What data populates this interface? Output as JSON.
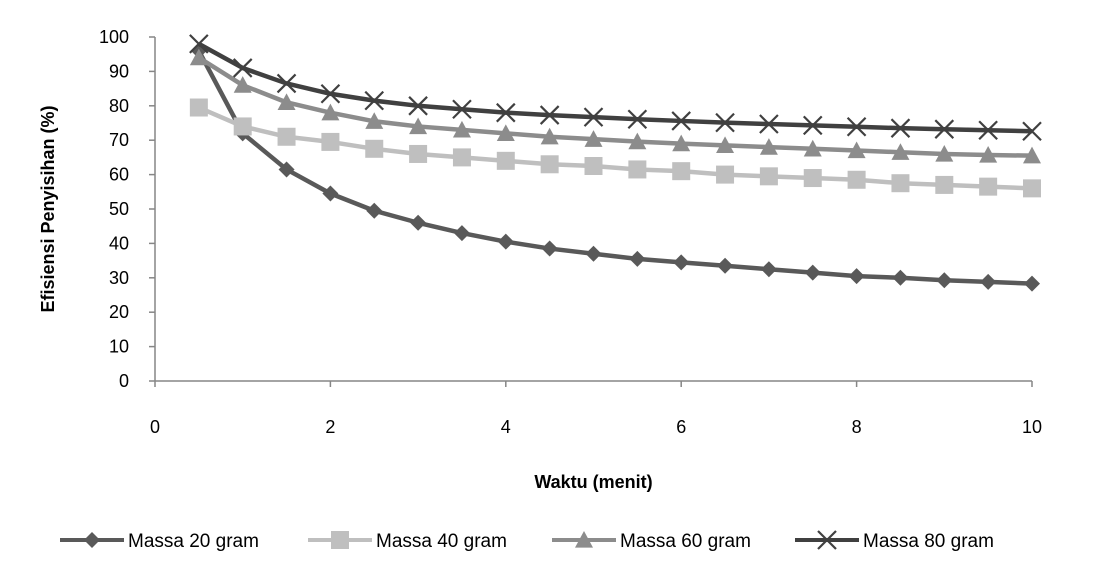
{
  "chart_data": {
    "type": "line",
    "title": "",
    "xlabel": "Waktu (menit)",
    "ylabel": "Efisiensi Penyisihan (%)",
    "xlim": [
      0,
      10
    ],
    "ylim": [
      0,
      100
    ],
    "x_ticks": [
      0,
      2,
      4,
      6,
      8,
      10
    ],
    "y_ticks": [
      0,
      10,
      20,
      30,
      40,
      50,
      60,
      70,
      80,
      90,
      100
    ],
    "grid": false,
    "legend_position": "bottom",
    "x": [
      0.5,
      1,
      1.5,
      2,
      2.5,
      3,
      3.5,
      4,
      4.5,
      5,
      5.5,
      6,
      6.5,
      7,
      7.5,
      8,
      8.5,
      9,
      9.5,
      10
    ],
    "series": [
      {
        "name": "Massa 20 gram",
        "marker": "diamond",
        "color": "#595959",
        "values": [
          96,
          72,
          61.5,
          54.5,
          49.5,
          46,
          43,
          40.5,
          38.5,
          37,
          35.5,
          34.5,
          33.5,
          32.5,
          31.5,
          30.5,
          30,
          29.3,
          28.8,
          28.3
        ]
      },
      {
        "name": "Massa 40 gram",
        "marker": "square",
        "color": "#bfbfbf",
        "values": [
          79.5,
          74,
          71,
          69.5,
          67.5,
          66,
          65,
          64,
          63,
          62.5,
          61.5,
          61,
          60,
          59.5,
          59,
          58.5,
          57.5,
          57,
          56.5,
          56
        ]
      },
      {
        "name": "Massa 60 gram",
        "marker": "triangle",
        "color": "#8c8c8c",
        "values": [
          94,
          86,
          81,
          78,
          75.5,
          74,
          73,
          72,
          71,
          70.3,
          69.6,
          69,
          68.5,
          68,
          67.5,
          67,
          66.5,
          66,
          65.7,
          65.5
        ]
      },
      {
        "name": "Massa 80 gram",
        "marker": "x",
        "color": "#404040",
        "values": [
          98,
          91,
          86.5,
          83.5,
          81.5,
          80,
          79,
          78,
          77.3,
          76.7,
          76.1,
          75.6,
          75.1,
          74.7,
          74.3,
          73.9,
          73.5,
          73.2,
          72.9,
          72.6
        ]
      }
    ]
  }
}
